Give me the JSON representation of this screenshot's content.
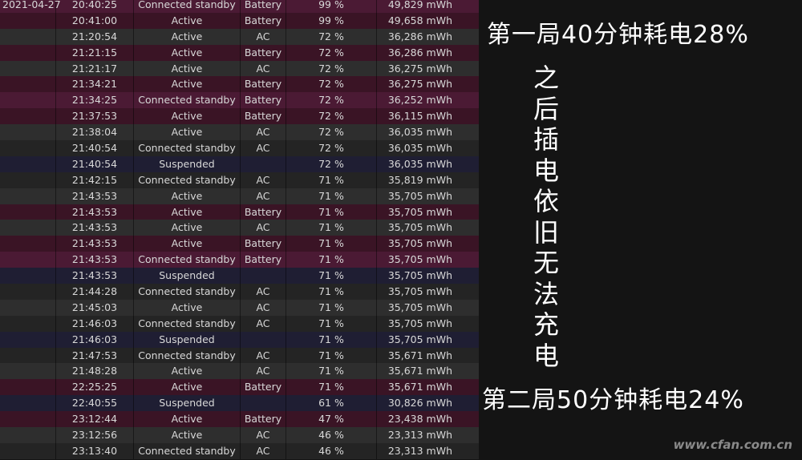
{
  "colors": {
    "battery_connected_standby": "#4b1a34",
    "battery_active": "#3a1425",
    "ac_active": "#2e2e2e",
    "ac_connected_standby": "#242424",
    "suspended": "#1f1e33",
    "panel_bg": "#141414"
  },
  "rows": [
    {
      "date": "2021-04-27",
      "time": "20:40:25",
      "state": "Connected standby",
      "source": "Battery",
      "percent": "99 %",
      "capacity": "49,829 mWh"
    },
    {
      "date": "",
      "time": "20:41:00",
      "state": "Active",
      "source": "Battery",
      "percent": "99 %",
      "capacity": "49,658 mWh"
    },
    {
      "date": "",
      "time": "21:20:54",
      "state": "Active",
      "source": "AC",
      "percent": "72 %",
      "capacity": "36,286 mWh"
    },
    {
      "date": "",
      "time": "21:21:15",
      "state": "Active",
      "source": "Battery",
      "percent": "72 %",
      "capacity": "36,286 mWh"
    },
    {
      "date": "",
      "time": "21:21:17",
      "state": "Active",
      "source": "AC",
      "percent": "72 %",
      "capacity": "36,275 mWh"
    },
    {
      "date": "",
      "time": "21:34:21",
      "state": "Active",
      "source": "Battery",
      "percent": "72 %",
      "capacity": "36,275 mWh"
    },
    {
      "date": "",
      "time": "21:34:25",
      "state": "Connected standby",
      "source": "Battery",
      "percent": "72 %",
      "capacity": "36,252 mWh"
    },
    {
      "date": "",
      "time": "21:37:53",
      "state": "Active",
      "source": "Battery",
      "percent": "72 %",
      "capacity": "36,115 mWh"
    },
    {
      "date": "",
      "time": "21:38:04",
      "state": "Active",
      "source": "AC",
      "percent": "72 %",
      "capacity": "36,035 mWh"
    },
    {
      "date": "",
      "time": "21:40:54",
      "state": "Connected standby",
      "source": "AC",
      "percent": "72 %",
      "capacity": "36,035 mWh"
    },
    {
      "date": "",
      "time": "21:40:54",
      "state": "Suspended",
      "source": "",
      "percent": "72 %",
      "capacity": "36,035 mWh"
    },
    {
      "date": "",
      "time": "21:42:15",
      "state": "Connected standby",
      "source": "AC",
      "percent": "71 %",
      "capacity": "35,819 mWh"
    },
    {
      "date": "",
      "time": "21:43:53",
      "state": "Active",
      "source": "AC",
      "percent": "71 %",
      "capacity": "35,705 mWh"
    },
    {
      "date": "",
      "time": "21:43:53",
      "state": "Active",
      "source": "Battery",
      "percent": "71 %",
      "capacity": "35,705 mWh"
    },
    {
      "date": "",
      "time": "21:43:53",
      "state": "Active",
      "source": "AC",
      "percent": "71 %",
      "capacity": "35,705 mWh"
    },
    {
      "date": "",
      "time": "21:43:53",
      "state": "Active",
      "source": "Battery",
      "percent": "71 %",
      "capacity": "35,705 mWh"
    },
    {
      "date": "",
      "time": "21:43:53",
      "state": "Connected standby",
      "source": "Battery",
      "percent": "71 %",
      "capacity": "35,705 mWh"
    },
    {
      "date": "",
      "time": "21:43:53",
      "state": "Suspended",
      "source": "",
      "percent": "71 %",
      "capacity": "35,705 mWh"
    },
    {
      "date": "",
      "time": "21:44:28",
      "state": "Connected standby",
      "source": "AC",
      "percent": "71 %",
      "capacity": "35,705 mWh"
    },
    {
      "date": "",
      "time": "21:45:03",
      "state": "Active",
      "source": "AC",
      "percent": "71 %",
      "capacity": "35,705 mWh"
    },
    {
      "date": "",
      "time": "21:46:03",
      "state": "Connected standby",
      "source": "AC",
      "percent": "71 %",
      "capacity": "35,705 mWh"
    },
    {
      "date": "",
      "time": "21:46:03",
      "state": "Suspended",
      "source": "",
      "percent": "71 %",
      "capacity": "35,705 mWh"
    },
    {
      "date": "",
      "time": "21:47:53",
      "state": "Connected standby",
      "source": "AC",
      "percent": "71 %",
      "capacity": "35,671 mWh"
    },
    {
      "date": "",
      "time": "21:48:28",
      "state": "Active",
      "source": "AC",
      "percent": "71 %",
      "capacity": "35,671 mWh"
    },
    {
      "date": "",
      "time": "22:25:25",
      "state": "Active",
      "source": "Battery",
      "percent": "71 %",
      "capacity": "35,671 mWh"
    },
    {
      "date": "",
      "time": "22:40:55",
      "state": "Suspended",
      "source": "",
      "percent": "61 %",
      "capacity": "30,826 mWh"
    },
    {
      "date": "",
      "time": "23:12:44",
      "state": "Active",
      "source": "Battery",
      "percent": "47 %",
      "capacity": "23,438 mWh"
    },
    {
      "date": "",
      "time": "23:12:56",
      "state": "Active",
      "source": "AC",
      "percent": "46 %",
      "capacity": "23,313 mWh"
    },
    {
      "date": "",
      "time": "23:13:40",
      "state": "Connected standby",
      "source": "AC",
      "percent": "46 %",
      "capacity": "23,313 mWh"
    }
  ],
  "annotations": {
    "first_session": "第一局40分钟耗电28%",
    "after_plug": "之后插电依旧无法充电",
    "second_session": "第二局50分钟耗电24%"
  },
  "watermark": "www.cfan.com.cn"
}
